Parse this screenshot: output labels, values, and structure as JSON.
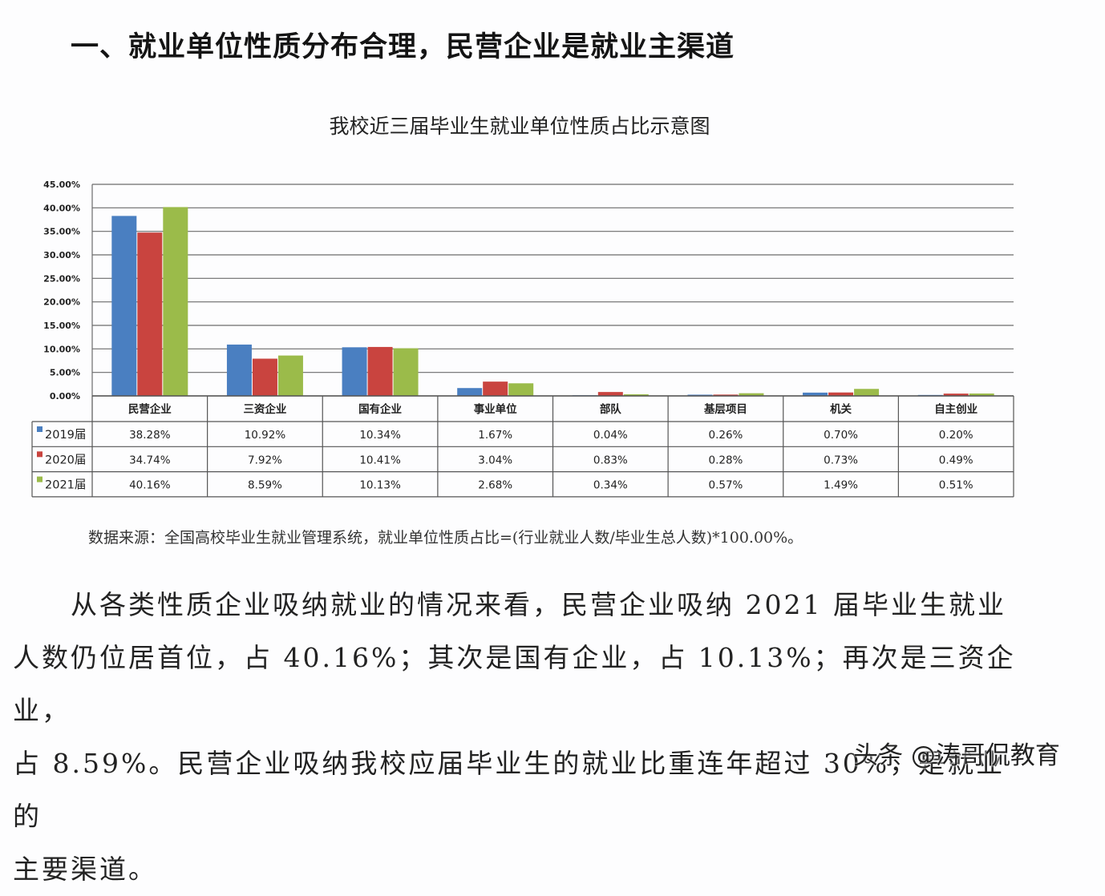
{
  "heading": "一、就业单位性质分布合理，民营企业是就业主渠道",
  "chart_data": {
    "type": "bar",
    "title": "我校近三届毕业生就业单位性质占比示意图",
    "xlabel": "",
    "ylabel": "",
    "ylim": [
      0,
      45
    ],
    "yticks": [
      "0.00%",
      "5.00%",
      "10.00%",
      "15.00%",
      "20.00%",
      "25.00%",
      "30.00%",
      "35.00%",
      "40.00%",
      "45.00%"
    ],
    "grid": true,
    "legend_position": "data-table",
    "categories": [
      "民营企业",
      "三资企业",
      "国有企业",
      "事业单位",
      "部队",
      "基层项目",
      "机关",
      "自主创业"
    ],
    "series": [
      {
        "name": "2019届",
        "color": "#4a7fc1",
        "values": [
          38.28,
          10.92,
          10.34,
          1.67,
          0.04,
          0.26,
          0.7,
          0.2
        ],
        "labels": [
          "38.28%",
          "10.92%",
          "10.34%",
          "1.67%",
          "0.04%",
          "0.26%",
          "0.70%",
          "0.20%"
        ]
      },
      {
        "name": "2020届",
        "color": "#c9443f",
        "values": [
          34.74,
          7.92,
          10.41,
          3.04,
          0.83,
          0.28,
          0.73,
          0.49
        ],
        "labels": [
          "34.74%",
          "7.92%",
          "10.41%",
          "3.04%",
          "0.83%",
          "0.28%",
          "0.73%",
          "0.49%"
        ]
      },
      {
        "name": "2021届",
        "color": "#9bbb4a",
        "values": [
          40.16,
          8.59,
          10.13,
          2.68,
          0.34,
          0.57,
          1.49,
          0.51
        ],
        "labels": [
          "40.16%",
          "8.59%",
          "10.13%",
          "2.68%",
          "0.34%",
          "0.57%",
          "1.49%",
          "0.51%"
        ]
      }
    ]
  },
  "source_note": "数据来源：全国高校毕业生就业管理系统，就业单位性质占比=(行业就业人数/毕业生总人数)*100.00%。",
  "paragraph": {
    "lines": [
      "从各类性质企业吸纳就业的情况来看，民营企业吸纳 2021 届毕业生就业",
      "人数仍位居首位，占 40.16%；其次是国有企业，占 10.13%；再次是三资企业，",
      "占 8.59%。民营企业吸纳我校应届毕业生的就业比重连年超过 30%，是就业的",
      "主要渠道。"
    ]
  },
  "watermark": "头条 @涛哥侃教育"
}
